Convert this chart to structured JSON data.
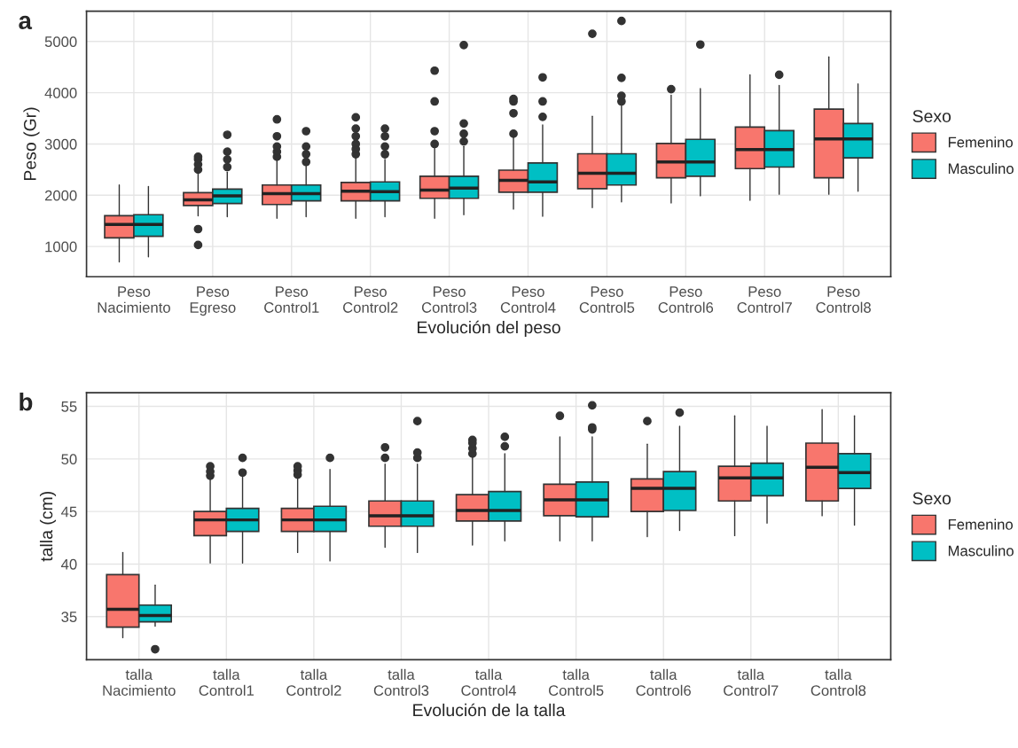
{
  "chart_data": [
    {
      "type": "box",
      "annotations": [
        "a"
      ],
      "xlabel": "Evolución del peso",
      "ylabel": "Peso (Gr)",
      "legend_title": "Sexo",
      "legend": "right",
      "grid": true,
      "ylim": [
        410,
        5590
      ],
      "yticks": [
        1000,
        2000,
        3000,
        4000,
        5000
      ],
      "categories": [
        "Peso\nNacimiento",
        "Peso\nEgreso",
        "Peso\nControl1",
        "Peso\nControl2",
        "Peso\nControl3",
        "Peso\nControl4",
        "Peso\nControl5",
        "Peso\nControl6",
        "Peso\nControl7",
        "Peso\nControl8"
      ],
      "series": [
        {
          "name": "Femenino",
          "color": "#f8766d",
          "boxes": [
            {
              "low": 700,
              "q1": 1170,
              "median": 1430,
              "q3": 1600,
              "high": 2200
            },
            {
              "low": 1600,
              "q1": 1800,
              "median": 1910,
              "q3": 2050,
              "high": 2450,
              "outliers": [
                1030,
                1340,
                2500,
                2600,
                2700,
                2750
              ]
            },
            {
              "low": 1550,
              "q1": 1820,
              "median": 2030,
              "q3": 2200,
              "high": 2700,
              "outliers": [
                2750,
                2850,
                2950,
                3150,
                3480
              ]
            },
            {
              "low": 1550,
              "q1": 1890,
              "median": 2080,
              "q3": 2250,
              "high": 2750,
              "outliers": [
                2800,
                2900,
                3000,
                3150,
                3300,
                3520
              ]
            },
            {
              "low": 1550,
              "q1": 1940,
              "median": 2100,
              "q3": 2370,
              "high": 2950,
              "outliers": [
                3000,
                3250,
                3830,
                4430
              ]
            },
            {
              "low": 1730,
              "q1": 2060,
              "median": 2290,
              "q3": 2490,
              "high": 3170,
              "outliers": [
                3200,
                3600,
                3830,
                3880
              ]
            },
            {
              "low": 1760,
              "q1": 2130,
              "median": 2430,
              "q3": 2810,
              "high": 3540,
              "outliers": [
                5150
              ]
            },
            {
              "low": 1850,
              "q1": 2340,
              "median": 2650,
              "q3": 3010,
              "high": 3950,
              "outliers": [
                4070
              ]
            },
            {
              "low": 1900,
              "q1": 2520,
              "median": 2890,
              "q3": 3330,
              "high": 4350
            },
            {
              "low": 2020,
              "q1": 2340,
              "median": 3100,
              "q3": 3680,
              "high": 4700
            }
          ]
        },
        {
          "name": "Masculino",
          "color": "#00bfc4",
          "boxes": [
            {
              "low": 800,
              "q1": 1200,
              "median": 1430,
              "q3": 1620,
              "high": 2170
            },
            {
              "low": 1580,
              "q1": 1840,
              "median": 1990,
              "q3": 2120,
              "high": 2450,
              "outliers": [
                2550,
                2700,
                2850,
                3180
              ]
            },
            {
              "low": 1580,
              "q1": 1890,
              "median": 2030,
              "q3": 2200,
              "high": 2600,
              "outliers": [
                2650,
                2800,
                2950,
                3250
              ]
            },
            {
              "low": 1580,
              "q1": 1890,
              "median": 2070,
              "q3": 2260,
              "high": 2700,
              "outliers": [
                2800,
                2950,
                3150,
                3300
              ]
            },
            {
              "low": 1620,
              "q1": 1940,
              "median": 2140,
              "q3": 2370,
              "high": 2950,
              "outliers": [
                3050,
                3200,
                3400,
                4930
              ]
            },
            {
              "low": 1590,
              "q1": 2060,
              "median": 2260,
              "q3": 2630,
              "high": 3370,
              "outliers": [
                3530,
                3830,
                4300
              ]
            },
            {
              "low": 1870,
              "q1": 2200,
              "median": 2430,
              "q3": 2810,
              "high": 3770,
              "outliers": [
                3830,
                3940,
                4290,
                5400
              ]
            },
            {
              "low": 1990,
              "q1": 2370,
              "median": 2650,
              "q3": 3090,
              "high": 4080,
              "outliers": [
                4940
              ]
            },
            {
              "low": 2020,
              "q1": 2550,
              "median": 2890,
              "q3": 3260,
              "high": 4140,
              "outliers": [
                4350
              ]
            },
            {
              "low": 2080,
              "q1": 2730,
              "median": 3100,
              "q3": 3400,
              "high": 4170
            }
          ]
        }
      ]
    },
    {
      "type": "box",
      "annotations": [
        "b"
      ],
      "xlabel": "Evolución de la talla",
      "ylabel": "talla (cm)",
      "legend_title": "Sexo",
      "legend": "right",
      "grid": true,
      "ylim": [
        30.9,
        56.3
      ],
      "yticks": [
        35,
        40,
        45,
        50,
        55
      ],
      "categories": [
        "talla\nNacimiento",
        "talla\nControl1",
        "talla\nControl2",
        "talla\nControl3",
        "talla\nControl4",
        "talla\nControl5",
        "talla\nControl6",
        "talla\nControl7",
        "talla\nControl8"
      ],
      "series": [
        {
          "name": "Femenino",
          "color": "#f8766d",
          "boxes": [
            {
              "low": 33.0,
              "q1": 34.0,
              "median": 35.7,
              "q3": 39.0,
              "high": 41.1
            },
            {
              "low": 40.1,
              "q1": 42.7,
              "median": 44.2,
              "q3": 45.0,
              "high": 48.2,
              "outliers": [
                48.4,
                48.8,
                49.3
              ]
            },
            {
              "low": 41.1,
              "q1": 43.1,
              "median": 44.2,
              "q3": 45.3,
              "high": 48.2,
              "outliers": [
                48.5,
                48.9,
                49.3
              ]
            },
            {
              "low": 41.6,
              "q1": 43.6,
              "median": 44.6,
              "q3": 46.0,
              "high": 49.5,
              "outliers": [
                50.1,
                51.1
              ]
            },
            {
              "low": 41.8,
              "q1": 44.1,
              "median": 45.1,
              "q3": 46.6,
              "high": 50.2,
              "outliers": [
                50.5,
                51.0,
                51.5,
                51.8
              ]
            },
            {
              "low": 42.2,
              "q1": 44.6,
              "median": 46.1,
              "q3": 47.6,
              "high": 52.1,
              "outliers": [
                54.1
              ]
            },
            {
              "low": 42.6,
              "q1": 45.0,
              "median": 47.2,
              "q3": 48.1,
              "high": 51.4,
              "outliers": [
                53.6
              ]
            },
            {
              "low": 42.7,
              "q1": 46.0,
              "median": 48.2,
              "q3": 49.3,
              "high": 54.1
            },
            {
              "low": 44.6,
              "q1": 46.0,
              "median": 49.2,
              "q3": 51.5,
              "high": 54.7
            }
          ]
        },
        {
          "name": "Masculino",
          "color": "#00bfc4",
          "boxes": [
            {
              "low": 34.1,
              "q1": 34.5,
              "median": 35.1,
              "q3": 36.1,
              "high": 38.0,
              "outliers": [
                31.9
              ]
            },
            {
              "low": 40.1,
              "q1": 43.1,
              "median": 44.2,
              "q3": 45.3,
              "high": 48.4,
              "outliers": [
                48.7,
                50.1
              ]
            },
            {
              "low": 40.3,
              "q1": 43.1,
              "median": 44.2,
              "q3": 45.5,
              "high": 49.0,
              "outliers": [
                50.1
              ]
            },
            {
              "low": 41.1,
              "q1": 43.6,
              "median": 44.6,
              "q3": 46.0,
              "high": 49.5,
              "outliers": [
                50.1,
                50.6,
                53.6
              ]
            },
            {
              "low": 42.2,
              "q1": 44.1,
              "median": 45.1,
              "q3": 46.9,
              "high": 50.5,
              "outliers": [
                51.2,
                52.1
              ]
            },
            {
              "low": 42.2,
              "q1": 44.5,
              "median": 46.1,
              "q3": 47.8,
              "high": 52.1,
              "outliers": [
                52.8,
                53.0,
                55.1
              ]
            },
            {
              "low": 43.2,
              "q1": 45.1,
              "median": 47.2,
              "q3": 48.8,
              "high": 53.1,
              "outliers": [
                54.4
              ]
            },
            {
              "low": 43.9,
              "q1": 46.5,
              "median": 48.2,
              "q3": 49.6,
              "high": 53.1
            },
            {
              "low": 43.7,
              "q1": 47.2,
              "median": 48.7,
              "q3": 50.5,
              "high": 54.1
            }
          ]
        }
      ]
    }
  ]
}
